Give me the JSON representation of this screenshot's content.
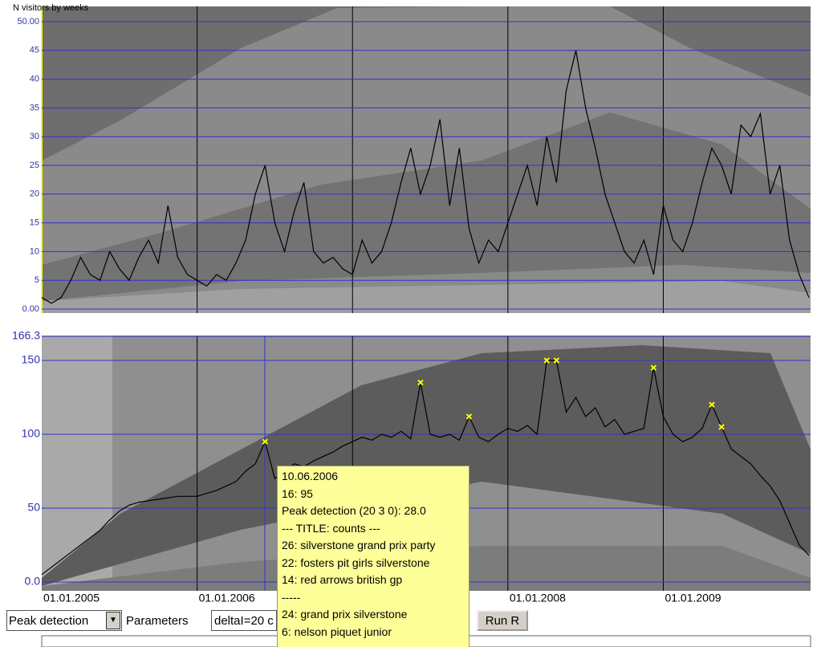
{
  "chart_data": [
    {
      "type": "line",
      "title": "N visitors by weeks",
      "color": "#000000",
      "grid": true,
      "ylim": [
        0,
        50
      ],
      "yticks": [
        {
          "value": 0,
          "label": "0.00"
        },
        5,
        10,
        15,
        20,
        25,
        30,
        35,
        40,
        45,
        {
          "value": 50,
          "label": "50.00"
        }
      ],
      "values": [
        2,
        1,
        2,
        5,
        9,
        6,
        5,
        10,
        7,
        5,
        9,
        12,
        8,
        18,
        9,
        6,
        5,
        4,
        6,
        5,
        8,
        12,
        20,
        25,
        15,
        10,
        17,
        22,
        10,
        8,
        9,
        7,
        6,
        12,
        8,
        10,
        15,
        22,
        28,
        20,
        25,
        33,
        18,
        28,
        14,
        8,
        12,
        10,
        15,
        20,
        25,
        18,
        30,
        22,
        38,
        45,
        35,
        28,
        20,
        15,
        10,
        8,
        12,
        6,
        18,
        12,
        10,
        15,
        22,
        28,
        25,
        20,
        32,
        30,
        34,
        20,
        25,
        12,
        6,
        2
      ]
    },
    {
      "type": "line",
      "grid": true,
      "ylim": [
        0,
        166.3
      ],
      "yticks": [
        {
          "value": 0,
          "label": "0.0"
        },
        50,
        100,
        150,
        166.3
      ],
      "categories": [
        "01.01.2005",
        null,
        null,
        null,
        null,
        null,
        null,
        null,
        null,
        null,
        null,
        null,
        null,
        null,
        null,
        null,
        "01.01.2006",
        null,
        null,
        null,
        null,
        null,
        null,
        null,
        null,
        null,
        null,
        null,
        null,
        null,
        null,
        null,
        null,
        null,
        null,
        null,
        null,
        null,
        null,
        null,
        null,
        null,
        null,
        null,
        null,
        null,
        null,
        null,
        "01.01.2008",
        null,
        null,
        null,
        null,
        null,
        null,
        null,
        null,
        null,
        null,
        null,
        null,
        null,
        null,
        null,
        "01.01.2009",
        null,
        null,
        null,
        null,
        null,
        null,
        null,
        null,
        null,
        null,
        null,
        null,
        null,
        null,
        null
      ],
      "series": [
        {
          "color": "#000000",
          "values": [
            5,
            10,
            15,
            20,
            25,
            30,
            35,
            42,
            48,
            52,
            54,
            55,
            56,
            57,
            58,
            58,
            58,
            60,
            62,
            65,
            68,
            75,
            80,
            95,
            70,
            75,
            80,
            78,
            82,
            85,
            88,
            92,
            95,
            98,
            96,
            100,
            98,
            102,
            97,
            135,
            100,
            98,
            100,
            96,
            112,
            98,
            95,
            100,
            104,
            102,
            106,
            100,
            150,
            150,
            115,
            125,
            112,
            118,
            105,
            110,
            100,
            102,
            104,
            145,
            112,
            100,
            95,
            98,
            104,
            120,
            105,
            90,
            85,
            80,
            72,
            65,
            55,
            40,
            25,
            18
          ]
        },
        {
          "color": "#ffff00",
          "values": [
            null,
            null,
            null,
            null,
            null,
            null,
            null,
            null,
            null,
            null,
            null,
            null,
            null,
            null,
            null,
            null,
            null,
            null,
            null,
            null,
            null,
            null,
            null,
            95,
            null,
            null,
            null,
            null,
            null,
            null,
            null,
            null,
            null,
            null,
            null,
            null,
            null,
            null,
            null,
            135,
            null,
            null,
            null,
            null,
            112,
            null,
            null,
            null,
            null,
            null,
            null,
            null,
            150,
            150,
            null,
            null,
            null,
            null,
            null,
            null,
            null,
            null,
            null,
            145,
            null,
            null,
            null,
            null,
            null,
            120,
            105,
            null,
            null,
            null,
            null,
            null,
            null,
            null,
            null,
            null
          ]
        }
      ]
    }
  ],
  "tooltip": {
    "lines": [
      "10.06.2006",
      "16: 95",
      "Peak detection (20  3  0): 28.0",
      "--- TITLE: counts ---",
      "26: silverstone grand prix party",
      "22: fosters pit girls silverstone",
      "14: red arrows british gp",
      "-----",
      "24: grand prix silverstone",
      "6: nelson piquet junior"
    ]
  },
  "toolbar": {
    "method": "Peak detection",
    "parameters_label": "Parameters",
    "parameters_value": "deltaI=20 c",
    "button": "Run R"
  }
}
